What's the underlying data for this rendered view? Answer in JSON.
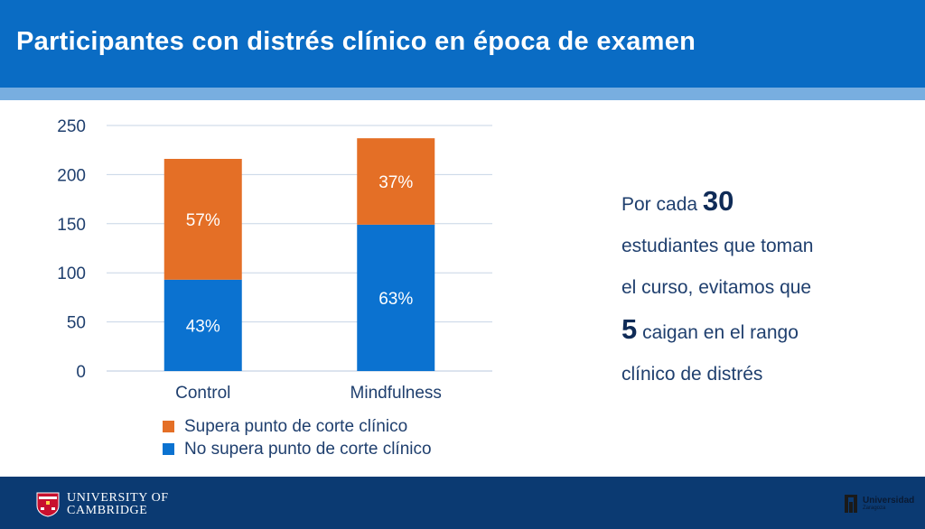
{
  "title": "Participantes con distrés clínico en época de examen",
  "chart_data": {
    "type": "bar",
    "stacked": true,
    "categories": [
      "Control",
      "Mindfulness"
    ],
    "series": [
      {
        "name": "No supera punto de corte clínico",
        "values": [
          93,
          149
        ],
        "labels": [
          "43%",
          "63%"
        ],
        "color": "#0b72d0"
      },
      {
        "name": "Supera punto de corte clínico",
        "values": [
          123,
          88
        ],
        "labels": [
          "57%",
          "37%"
        ],
        "color": "#e46f26"
      }
    ],
    "ylim": [
      0,
      250
    ],
    "yticks": [
      0,
      50,
      100,
      150,
      200,
      250
    ],
    "grid": true,
    "legend_position": "bottom",
    "legend_order": [
      1,
      0
    ]
  },
  "side_text": {
    "line1_pre": "Por cada ",
    "line1_num": "30",
    "line2": "estudiantes que toman",
    "line3": "el curso, evitamos que",
    "line4_num": "5",
    "line4_post": " caigan en el rango",
    "line5": "clínico de distrés"
  },
  "footer": {
    "cambridge_line1": "UNIVERSITY OF",
    "cambridge_line2": "CAMBRIDGE",
    "unizar_name": "Universidad",
    "unizar_sub": "Zaragoza"
  },
  "colors": {
    "header": "#0a6cc4",
    "footer": "#0b3a72",
    "orange": "#e46f26",
    "blue": "#0b72d0"
  }
}
